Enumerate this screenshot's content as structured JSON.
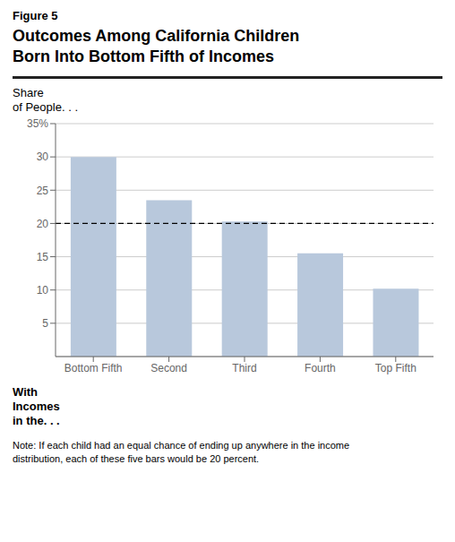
{
  "chart_data": {
    "type": "bar",
    "annotations": [
      "Figure 5"
    ],
    "title": "Outcomes Among California Children\nBorn Into Bottom Fifth of Incomes",
    "y_label": "Share\nof People. . .",
    "x_label": "With\nIncomes\nin the. . .",
    "note": "Note: If each child had an equal chance of ending up anywhere in the income\ndistribution, each of these five bars would be 20 percent.",
    "categories": [
      "Bottom Fifth",
      "Second",
      "Third",
      "Fourth",
      "Top Fifth"
    ],
    "values": [
      30,
      23.5,
      20.3,
      15.5,
      10.2
    ],
    "color": "#B8C8DC",
    "reference_line": 20,
    "ylim": [
      0,
      35
    ],
    "yticks": [
      5,
      10,
      15,
      20,
      25,
      30,
      {
        "value": 35,
        "label": "35%"
      }
    ],
    "grid": true
  }
}
